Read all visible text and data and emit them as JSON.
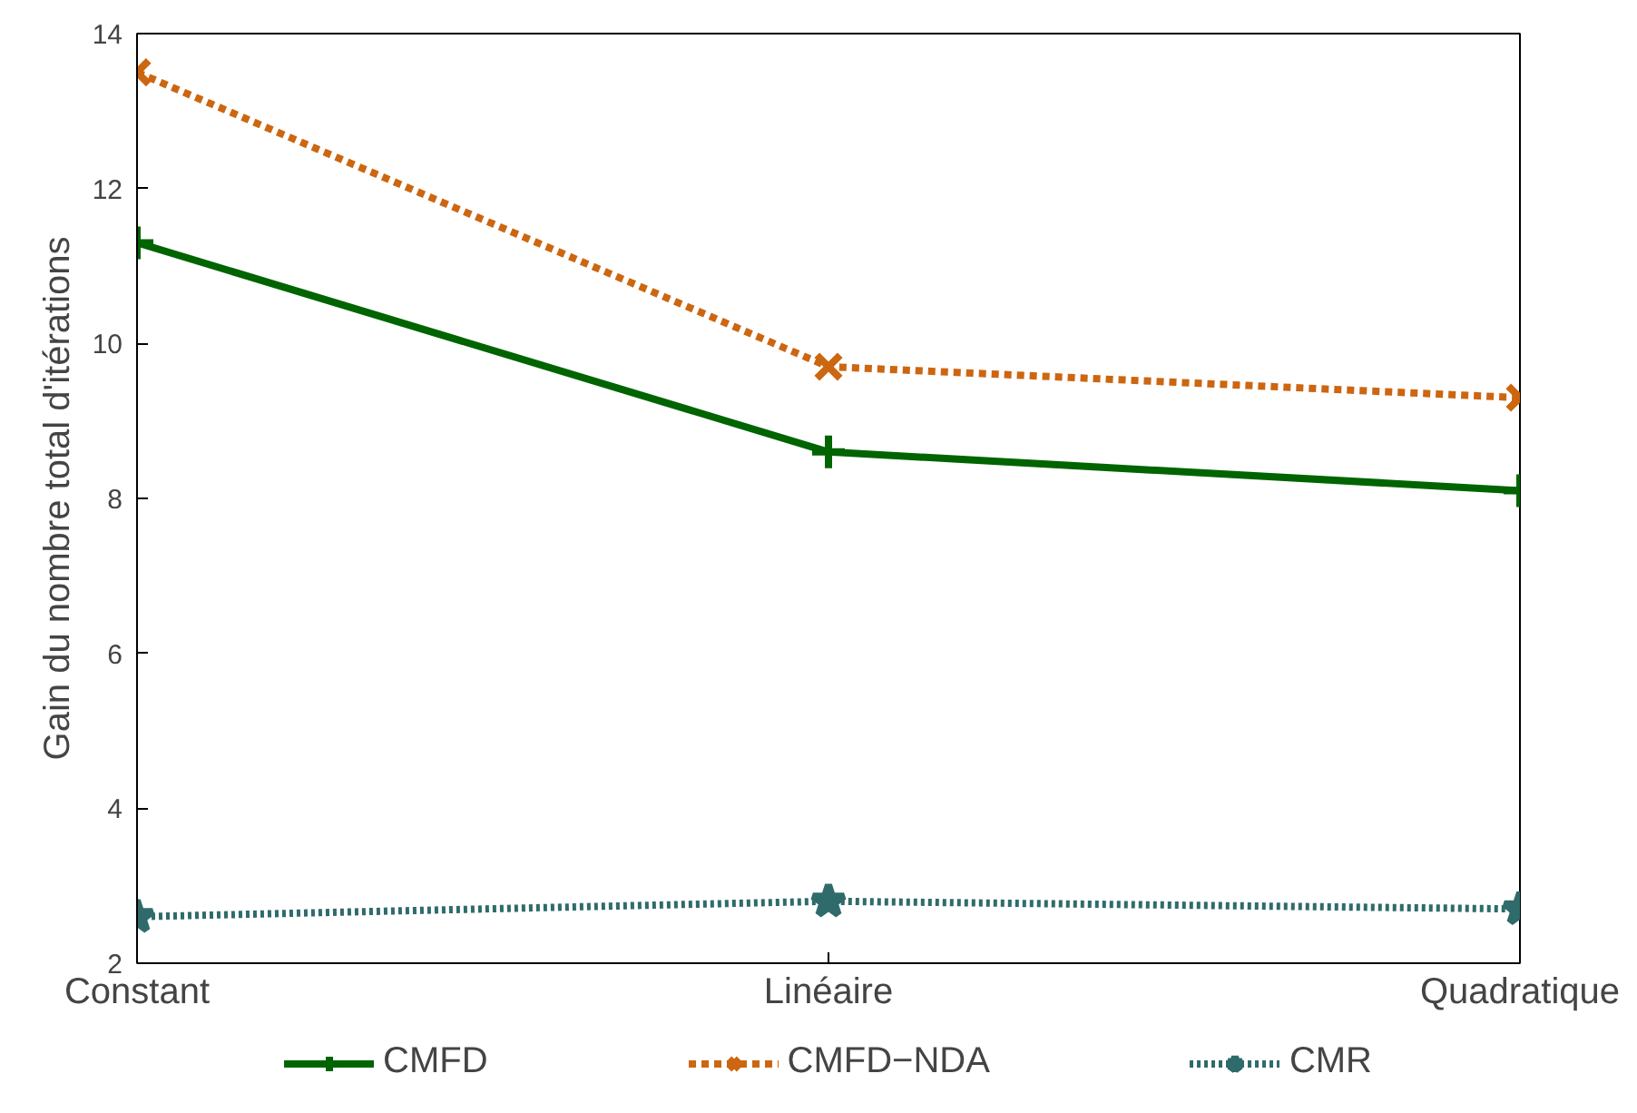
{
  "chart_data": {
    "type": "line",
    "ylabel": "Gain du nombre total d'itérations",
    "categories": [
      "Constant",
      "Linéaire",
      "Quadratique"
    ],
    "ylim": [
      2,
      14
    ],
    "yticks": [
      2,
      4,
      6,
      8,
      10,
      12,
      14
    ],
    "grid": false,
    "legend": "bottom",
    "series": [
      {
        "name": "CMFD",
        "color": "#006400",
        "values": [
          11.3,
          8.6,
          8.1
        ],
        "marker": "cross",
        "line_style": "solid"
      },
      {
        "name": "CMFD−NDA",
        "color": "#cc6611",
        "values": [
          13.5,
          9.7,
          9.3
        ],
        "marker": "x",
        "line_style": "dashed"
      },
      {
        "name": "CMR",
        "color": "#2f6b6b",
        "values": [
          2.6,
          2.8,
          2.7
        ],
        "marker": "star",
        "line_style": "dotted"
      }
    ]
  }
}
